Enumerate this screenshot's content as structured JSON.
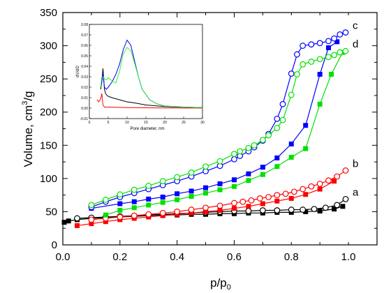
{
  "chart_data": [
    {
      "type": "scatter",
      "xlabel": "p/p0",
      "ylabel": "Volume, cm3/g",
      "xlim": [
        0.0,
        1.1
      ],
      "ylim": [
        0,
        350
      ],
      "x_ticks": [
        "0.0",
        "0.2",
        "0.4",
        "0.6",
        "0.8",
        "1.0"
      ],
      "y_ticks": [
        "0",
        "50",
        "100",
        "150",
        "200",
        "250",
        "300",
        "350"
      ],
      "grid": false,
      "legend": "none",
      "series": [
        {
          "name": "a",
          "color": "#000000",
          "adsorption": {
            "marker": "filled-square",
            "x": [
              0.005,
              0.02,
              0.05,
              0.1,
              0.15,
              0.2,
              0.25,
              0.3,
              0.35,
              0.4,
              0.45,
              0.5,
              0.55,
              0.6,
              0.65,
              0.7,
              0.75,
              0.8,
              0.85,
              0.9,
              0.95,
              0.98
            ],
            "y": [
              34,
              36,
              38,
              40,
              41,
              42,
              43,
              44,
              45,
              45,
              46,
              46,
              47,
              47,
              48,
              48,
              49,
              49,
              50,
              51,
              54,
              58
            ]
          },
          "desorption": {
            "marker": "open-circle",
            "x": [
              0.99,
              0.96,
              0.92,
              0.88,
              0.84,
              0.8,
              0.75,
              0.7,
              0.65,
              0.6,
              0.55,
              0.5,
              0.45,
              0.4,
              0.35,
              0.3,
              0.25,
              0.2,
              0.15,
              0.1,
              0.05
            ],
            "y": [
              69,
              60,
              56,
              54,
              53,
              53,
              52,
              52,
              51,
              51,
              50,
              49,
              48,
              47,
              46,
              45,
              44,
              43,
              42,
              41,
              40
            ]
          }
        },
        {
          "name": "b",
          "color": "#ff0000",
          "adsorption": {
            "marker": "filled-square",
            "x": [
              0.05,
              0.1,
              0.15,
              0.2,
              0.25,
              0.3,
              0.35,
              0.4,
              0.45,
              0.5,
              0.55,
              0.6,
              0.65,
              0.7,
              0.75,
              0.8,
              0.85,
              0.9,
              0.95
            ],
            "y": [
              29,
              32,
              35,
              38,
              40,
              42,
              44,
              46,
              48,
              50,
              52,
              55,
              58,
              62,
              66,
              70,
              76,
              84,
              96
            ]
          },
          "desorption": {
            "marker": "open-circle",
            "x": [
              0.99,
              0.96,
              0.93,
              0.9,
              0.87,
              0.84,
              0.81,
              0.78,
              0.75,
              0.72,
              0.69,
              0.66,
              0.63,
              0.6,
              0.55,
              0.5,
              0.45,
              0.4,
              0.35,
              0.3,
              0.25,
              0.2,
              0.15,
              0.1
            ],
            "y": [
              112,
              103,
              97,
              92,
              88,
              84,
              80,
              77,
              75,
              72,
              70,
              67,
              65,
              63,
              59,
              56,
              53,
              50,
              48,
              46,
              44,
              42,
              40,
              38
            ]
          }
        },
        {
          "name": "c",
          "color": "#0000ff",
          "adsorption": {
            "marker": "filled-square",
            "x": [
              0.1,
              0.2,
              0.25,
              0.3,
              0.35,
              0.4,
              0.45,
              0.5,
              0.55,
              0.6,
              0.65,
              0.7,
              0.75,
              0.8,
              0.85,
              0.9,
              0.93,
              0.96
            ],
            "y": [
              55,
              62,
              65,
              69,
              72,
              77,
              81,
              86,
              92,
              98,
              107,
              117,
              131,
              152,
              180,
              257,
              297,
              306
            ]
          },
          "desorption": {
            "marker": "open-circle",
            "x": [
              0.99,
              0.97,
              0.95,
              0.93,
              0.9,
              0.87,
              0.84,
              0.82,
              0.8,
              0.77,
              0.75,
              0.72,
              0.7,
              0.67,
              0.65,
              0.62,
              0.6,
              0.55,
              0.5,
              0.45,
              0.4,
              0.35,
              0.3,
              0.25,
              0.2,
              0.15,
              0.1
            ],
            "y": [
              320,
              317,
              311,
              307,
              304,
              302,
              300,
              287,
              258,
              212,
              190,
              167,
              157,
              147,
              141,
              134,
              129,
              119,
              111,
              103,
              96,
              90,
              84,
              78,
              72,
              65,
              57
            ]
          }
        },
        {
          "name": "d",
          "color": "#00e000",
          "adsorption": {
            "marker": "filled-square",
            "x": [
              0.15,
              0.2,
              0.25,
              0.3,
              0.35,
              0.4,
              0.45,
              0.5,
              0.55,
              0.6,
              0.65,
              0.7,
              0.75,
              0.8,
              0.85,
              0.9,
              0.94,
              0.98
            ],
            "y": [
              45,
              52,
              56,
              60,
              64,
              68,
              73,
              78,
              83,
              88,
              97,
              106,
              118,
              132,
              145,
              212,
              257,
              290
            ]
          },
          "desorption": {
            "marker": "open-circle",
            "x": [
              0.99,
              0.97,
              0.95,
              0.93,
              0.9,
              0.87,
              0.84,
              0.82,
              0.8,
              0.77,
              0.75,
              0.72,
              0.7,
              0.67,
              0.65,
              0.62,
              0.6,
              0.55,
              0.5,
              0.45,
              0.4,
              0.35,
              0.3,
              0.25,
              0.2,
              0.15,
              0.1
            ],
            "y": [
              292,
              290,
              286,
              283,
              280,
              276,
              272,
              257,
              226,
              188,
              176,
              165,
              158,
              150,
              146,
              141,
              137,
              126,
              118,
              109,
              102,
              96,
              89,
              83,
              76,
              68,
              60
            ]
          }
        }
      ]
    },
    {
      "type": "line",
      "xlabel": "Pore diameter, nm",
      "ylabel": "dV/dD",
      "xlim": [
        0,
        30
      ],
      "ylim": [
        -0.01,
        0.08
      ],
      "x_ticks": [
        "0",
        "5",
        "10",
        "15",
        "20",
        "25",
        "30"
      ],
      "y_ticks": [
        "-0.01",
        "0.00",
        "0.01",
        "0.02",
        "0.03",
        "0.04",
        "0.05",
        "0.06",
        "0.07",
        "0.08"
      ],
      "grid": false,
      "legend": "none",
      "series": [
        {
          "color": "#ff0000",
          "x": [
            2,
            2.5,
            3,
            3.3,
            3.6,
            4,
            5,
            7,
            10,
            15,
            20,
            30
          ],
          "y": [
            0.008,
            0.006,
            0.009,
            0.014,
            0.003,
            0.001,
            0.001,
            0.0008,
            0.0005,
            0.0003,
            0.0002,
            0.0001
          ]
        },
        {
          "color": "#000000",
          "x": [
            3,
            3.3,
            3.6,
            3.8,
            4,
            4.3,
            4.7,
            5.2,
            6,
            7,
            8,
            9,
            10,
            12,
            15,
            20,
            25,
            30
          ],
          "y": [
            0.018,
            0.025,
            0.038,
            0.028,
            0.018,
            0.014,
            0.012,
            0.011,
            0.01,
            0.009,
            0.008,
            0.007,
            0.006,
            0.005,
            0.003,
            0.0015,
            0.0008,
            0.0005
          ]
        },
        {
          "color": "#0000ff",
          "x": [
            3,
            3.3,
            3.6,
            4,
            4.5,
            5,
            6,
            7,
            8,
            9,
            10,
            11,
            12,
            13,
            14,
            16,
            18,
            20,
            25,
            30
          ],
          "y": [
            0.02,
            0.025,
            0.033,
            0.02,
            0.018,
            0.02,
            0.025,
            0.032,
            0.042,
            0.056,
            0.065,
            0.06,
            0.045,
            0.03,
            0.018,
            0.008,
            0.004,
            0.002,
            0.001,
            0.0005
          ]
        },
        {
          "color": "#33ee33",
          "x": [
            3,
            3.3,
            3.6,
            4,
            4.5,
            5,
            6,
            7,
            8,
            9,
            10,
            11,
            12,
            13,
            14,
            16,
            18,
            20,
            25,
            30
          ],
          "y": [
            0.02,
            0.03,
            0.03,
            0.028,
            0.027,
            0.029,
            0.026,
            0.024,
            0.035,
            0.052,
            0.058,
            0.055,
            0.043,
            0.03,
            0.018,
            0.008,
            0.004,
            0.002,
            0.001,
            0.0005
          ]
        }
      ]
    }
  ]
}
